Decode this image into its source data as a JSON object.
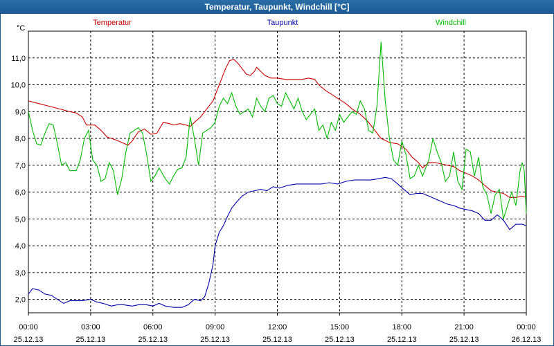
{
  "window": {
    "title": "Temperatur, Taupunkt, Windchill [°C]"
  },
  "chart_data": {
    "type": "line",
    "title": "Temperatur, Taupunkt, Windchill [°C]",
    "ylabel": "°C",
    "ylim": [
      1.5,
      12.0
    ],
    "y_ticks": [
      "2,0",
      "3,0",
      "4,0",
      "5,0",
      "6,0",
      "7,0",
      "8,0",
      "9,0",
      "10,0",
      "11,0"
    ],
    "y_tick_values": [
      2,
      3,
      4,
      5,
      6,
      7,
      8,
      9,
      10,
      11
    ],
    "xlim": [
      0,
      24
    ],
    "x_ticks": [
      {
        "time": "00:00",
        "date": "25.12.13",
        "h": 0
      },
      {
        "time": "03:00",
        "date": "25.12.13",
        "h": 3
      },
      {
        "time": "06:00",
        "date": "25.12.13",
        "h": 6
      },
      {
        "time": "09:00",
        "date": "25.12.13",
        "h": 9
      },
      {
        "time": "12:00",
        "date": "25.12.13",
        "h": 12
      },
      {
        "time": "15:00",
        "date": "25.12.13",
        "h": 15
      },
      {
        "time": "18:00",
        "date": "25.12.13",
        "h": 18
      },
      {
        "time": "21:00",
        "date": "25.12.13",
        "h": 21
      },
      {
        "time": "00:00",
        "date": "26.12.13",
        "h": 24
      }
    ],
    "grid": true,
    "legend_position": "top",
    "series": [
      {
        "name": "Temperatur",
        "color": "#cc0000",
        "points": [
          [
            0,
            9.4
          ],
          [
            0.5,
            9.3
          ],
          [
            1,
            9.2
          ],
          [
            1.5,
            9.1
          ],
          [
            2,
            9.0
          ],
          [
            2.3,
            8.95
          ],
          [
            2.6,
            8.8
          ],
          [
            2.8,
            8.5
          ],
          [
            3.2,
            8.5
          ],
          [
            3.5,
            8.3
          ],
          [
            3.8,
            8.05
          ],
          [
            4.2,
            7.95
          ],
          [
            4.5,
            7.85
          ],
          [
            4.8,
            7.75
          ],
          [
            5.0,
            7.9
          ],
          [
            5.3,
            8.25
          ],
          [
            5.6,
            8.35
          ],
          [
            5.9,
            8.15
          ],
          [
            6.2,
            8.2
          ],
          [
            6.5,
            8.6
          ],
          [
            6.8,
            8.55
          ],
          [
            7.0,
            8.5
          ],
          [
            7.3,
            8.55
          ],
          [
            7.6,
            8.5
          ],
          [
            7.8,
            8.45
          ],
          [
            8.0,
            8.6
          ],
          [
            8.3,
            8.8
          ],
          [
            8.6,
            9.1
          ],
          [
            8.9,
            9.4
          ],
          [
            9.1,
            9.8
          ],
          [
            9.3,
            10.2
          ],
          [
            9.5,
            10.6
          ],
          [
            9.7,
            10.9
          ],
          [
            9.9,
            10.95
          ],
          [
            10.1,
            10.8
          ],
          [
            10.3,
            10.6
          ],
          [
            10.5,
            10.4
          ],
          [
            10.7,
            10.35
          ],
          [
            10.9,
            10.5
          ],
          [
            11.0,
            10.65
          ],
          [
            11.2,
            10.5
          ],
          [
            11.4,
            10.35
          ],
          [
            11.7,
            10.25
          ],
          [
            12.0,
            10.25
          ],
          [
            12.4,
            10.2
          ],
          [
            12.8,
            10.2
          ],
          [
            13.2,
            10.2
          ],
          [
            13.5,
            10.25
          ],
          [
            13.8,
            10.2
          ],
          [
            14.0,
            10.0
          ],
          [
            14.3,
            9.8
          ],
          [
            14.6,
            9.65
          ],
          [
            15.0,
            9.45
          ],
          [
            15.3,
            9.3
          ],
          [
            15.6,
            9.1
          ],
          [
            16.0,
            8.9
          ],
          [
            16.4,
            8.6
          ],
          [
            16.7,
            8.3
          ],
          [
            17.0,
            8.0
          ],
          [
            17.4,
            7.85
          ],
          [
            17.8,
            7.8
          ],
          [
            18.2,
            7.6
          ],
          [
            18.5,
            7.3
          ],
          [
            18.8,
            7.1
          ],
          [
            19.0,
            6.9
          ],
          [
            19.3,
            7.1
          ],
          [
            19.6,
            7.1
          ],
          [
            19.9,
            7.05
          ],
          [
            20.2,
            7.0
          ],
          [
            20.5,
            6.95
          ],
          [
            20.8,
            6.8
          ],
          [
            21.1,
            6.7
          ],
          [
            21.4,
            6.6
          ],
          [
            21.7,
            6.45
          ],
          [
            22.0,
            6.25
          ],
          [
            22.3,
            6.05
          ],
          [
            22.6,
            6.0
          ],
          [
            22.9,
            5.95
          ],
          [
            23.2,
            5.8
          ],
          [
            23.5,
            5.8
          ],
          [
            23.8,
            5.85
          ],
          [
            24.0,
            5.8
          ]
        ]
      },
      {
        "name": "Taupunkt",
        "color": "#0000aa",
        "points": [
          [
            0,
            2.2
          ],
          [
            0.2,
            2.4
          ],
          [
            0.5,
            2.35
          ],
          [
            0.8,
            2.2
          ],
          [
            1.1,
            2.15
          ],
          [
            1.4,
            2.0
          ],
          [
            1.7,
            1.85
          ],
          [
            2.0,
            1.95
          ],
          [
            2.3,
            1.95
          ],
          [
            2.6,
            1.95
          ],
          [
            3.0,
            2.0
          ],
          [
            3.3,
            1.9
          ],
          [
            3.6,
            1.85
          ],
          [
            4.0,
            1.75
          ],
          [
            4.3,
            1.8
          ],
          [
            4.6,
            1.8
          ],
          [
            5.0,
            1.75
          ],
          [
            5.3,
            1.8
          ],
          [
            5.7,
            1.8
          ],
          [
            6.0,
            1.75
          ],
          [
            6.3,
            1.85
          ],
          [
            6.6,
            1.75
          ],
          [
            7.0,
            1.7
          ],
          [
            7.4,
            1.7
          ],
          [
            7.7,
            1.8
          ],
          [
            8.0,
            2.0
          ],
          [
            8.3,
            1.95
          ],
          [
            8.5,
            2.1
          ],
          [
            8.7,
            2.6
          ],
          [
            8.9,
            3.3
          ],
          [
            9.0,
            4.0
          ],
          [
            9.2,
            4.5
          ],
          [
            9.4,
            4.75
          ],
          [
            9.6,
            5.1
          ],
          [
            9.8,
            5.4
          ],
          [
            10.0,
            5.6
          ],
          [
            10.3,
            5.85
          ],
          [
            10.6,
            6.0
          ],
          [
            10.9,
            6.05
          ],
          [
            11.2,
            6.1
          ],
          [
            11.5,
            6.05
          ],
          [
            11.8,
            6.2
          ],
          [
            12.1,
            6.15
          ],
          [
            12.5,
            6.25
          ],
          [
            12.9,
            6.3
          ],
          [
            13.3,
            6.3
          ],
          [
            13.7,
            6.3
          ],
          [
            14.1,
            6.3
          ],
          [
            14.5,
            6.35
          ],
          [
            14.9,
            6.3
          ],
          [
            15.3,
            6.4
          ],
          [
            15.7,
            6.45
          ],
          [
            16.1,
            6.45
          ],
          [
            16.5,
            6.45
          ],
          [
            16.9,
            6.5
          ],
          [
            17.2,
            6.55
          ],
          [
            17.5,
            6.5
          ],
          [
            17.8,
            6.3
          ],
          [
            18.1,
            6.1
          ],
          [
            18.4,
            5.9
          ],
          [
            18.7,
            5.95
          ],
          [
            19.0,
            5.95
          ],
          [
            19.3,
            5.85
          ],
          [
            19.6,
            5.75
          ],
          [
            19.9,
            5.65
          ],
          [
            20.2,
            5.55
          ],
          [
            20.5,
            5.5
          ],
          [
            20.8,
            5.4
          ],
          [
            21.1,
            5.35
          ],
          [
            21.4,
            5.3
          ],
          [
            21.7,
            5.2
          ],
          [
            22.0,
            4.95
          ],
          [
            22.3,
            4.95
          ],
          [
            22.6,
            5.15
          ],
          [
            22.9,
            4.95
          ],
          [
            23.2,
            4.6
          ],
          [
            23.5,
            4.8
          ],
          [
            23.8,
            4.8
          ],
          [
            24.0,
            4.75
          ]
        ]
      },
      {
        "name": "Windchill",
        "color": "#00bb00",
        "points": [
          [
            0,
            9.0
          ],
          [
            0.2,
            8.3
          ],
          [
            0.4,
            7.8
          ],
          [
            0.6,
            7.75
          ],
          [
            0.8,
            8.2
          ],
          [
            1.0,
            8.55
          ],
          [
            1.2,
            8.5
          ],
          [
            1.4,
            7.8
          ],
          [
            1.6,
            7.0
          ],
          [
            1.8,
            7.1
          ],
          [
            2.0,
            6.8
          ],
          [
            2.3,
            6.8
          ],
          [
            2.5,
            7.2
          ],
          [
            2.7,
            8.0
          ],
          [
            2.9,
            8.3
          ],
          [
            3.1,
            7.2
          ],
          [
            3.3,
            7.0
          ],
          [
            3.5,
            6.4
          ],
          [
            3.7,
            6.5
          ],
          [
            3.9,
            7.1
          ],
          [
            4.1,
            6.8
          ],
          [
            4.3,
            5.9
          ],
          [
            4.5,
            6.5
          ],
          [
            4.7,
            7.5
          ],
          [
            4.9,
            8.2
          ],
          [
            5.1,
            8.3
          ],
          [
            5.3,
            8.4
          ],
          [
            5.5,
            8.2
          ],
          [
            5.7,
            7.4
          ],
          [
            5.9,
            6.4
          ],
          [
            6.1,
            6.6
          ],
          [
            6.3,
            6.9
          ],
          [
            6.6,
            6.5
          ],
          [
            6.8,
            6.3
          ],
          [
            7.0,
            6.6
          ],
          [
            7.2,
            6.85
          ],
          [
            7.4,
            6.9
          ],
          [
            7.6,
            7.3
          ],
          [
            7.8,
            8.8
          ],
          [
            8.0,
            8.0
          ],
          [
            8.2,
            7.0
          ],
          [
            8.4,
            8.2
          ],
          [
            8.6,
            8.3
          ],
          [
            8.8,
            8.4
          ],
          [
            9.0,
            8.6
          ],
          [
            9.2,
            9.2
          ],
          [
            9.4,
            9.5
          ],
          [
            9.6,
            9.3
          ],
          [
            9.8,
            9.7
          ],
          [
            10.0,
            9.2
          ],
          [
            10.2,
            8.9
          ],
          [
            10.4,
            9.0
          ],
          [
            10.6,
            9.1
          ],
          [
            10.8,
            8.8
          ],
          [
            11.0,
            9.5
          ],
          [
            11.2,
            9.2
          ],
          [
            11.4,
            9.0
          ],
          [
            11.6,
            9.5
          ],
          [
            11.8,
            9.6
          ],
          [
            12.0,
            9.3
          ],
          [
            12.2,
            9.2
          ],
          [
            12.4,
            9.7
          ],
          [
            12.6,
            9.4
          ],
          [
            12.8,
            9.1
          ],
          [
            13.0,
            9.5
          ],
          [
            13.2,
            9.0
          ],
          [
            13.4,
            8.7
          ],
          [
            13.6,
            8.9
          ],
          [
            13.8,
            9.1
          ],
          [
            14.0,
            8.3
          ],
          [
            14.2,
            8.5
          ],
          [
            14.4,
            8.0
          ],
          [
            14.6,
            8.6
          ],
          [
            14.8,
            8.3
          ],
          [
            15.0,
            8.9
          ],
          [
            15.2,
            8.6
          ],
          [
            15.4,
            8.8
          ],
          [
            15.6,
            9.0
          ],
          [
            15.8,
            8.9
          ],
          [
            16.0,
            9.4
          ],
          [
            16.2,
            9.1
          ],
          [
            16.4,
            8.3
          ],
          [
            16.6,
            8.2
          ],
          [
            16.8,
            9.2
          ],
          [
            17.0,
            11.6
          ],
          [
            17.2,
            9.4
          ],
          [
            17.4,
            8.0
          ],
          [
            17.6,
            7.2
          ],
          [
            17.8,
            7.0
          ],
          [
            18.0,
            7.9
          ],
          [
            18.2,
            7.4
          ],
          [
            18.4,
            6.5
          ],
          [
            18.6,
            6.6
          ],
          [
            18.8,
            7.0
          ],
          [
            19.0,
            6.6
          ],
          [
            19.3,
            7.2
          ],
          [
            19.5,
            8.0
          ],
          [
            19.7,
            7.5
          ],
          [
            19.9,
            7.1
          ],
          [
            20.1,
            6.4
          ],
          [
            20.3,
            6.6
          ],
          [
            20.5,
            7.5
          ],
          [
            20.7,
            6.4
          ],
          [
            20.9,
            6.1
          ],
          [
            21.1,
            7.6
          ],
          [
            21.3,
            7.5
          ],
          [
            21.5,
            6.6
          ],
          [
            21.7,
            7.3
          ],
          [
            21.9,
            6.2
          ],
          [
            22.1,
            5.9
          ],
          [
            22.3,
            5.2
          ],
          [
            22.5,
            5.9
          ],
          [
            22.7,
            6.1
          ],
          [
            22.9,
            5.0
          ],
          [
            23.1,
            5.5
          ],
          [
            23.3,
            6.0
          ],
          [
            23.5,
            5.5
          ],
          [
            23.7,
            6.8
          ],
          [
            23.8,
            7.1
          ],
          [
            23.9,
            6.8
          ],
          [
            24.0,
            5.2
          ]
        ]
      }
    ]
  }
}
